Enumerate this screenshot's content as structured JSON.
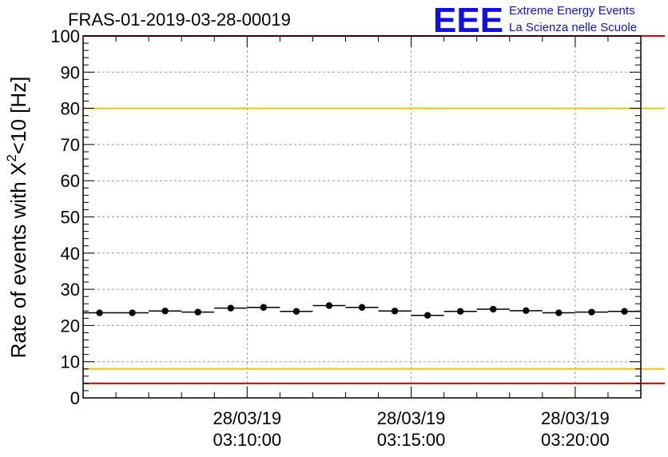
{
  "header": {
    "title": "FRAS-01-2019-03-28-00019",
    "logo_text": "EEE",
    "logo_line1": "Extreme Energy Events",
    "logo_line2": "La Scienza nelle Scuole"
  },
  "chart_data": {
    "type": "scatter",
    "title": "FRAS-01-2019-03-28-00019",
    "ylabel_main": "Rate of events with X",
    "ylabel_sup": "2",
    "ylabel_tail": "<10 [Hz]",
    "xlabel": "",
    "ylim": [
      0,
      100
    ],
    "yticks": [
      0,
      10,
      20,
      30,
      40,
      50,
      60,
      70,
      80,
      90,
      100
    ],
    "ytick_labels": [
      "0",
      "10",
      "20",
      "30",
      "40",
      "50",
      "60",
      "70",
      "80",
      "90",
      "100"
    ],
    "xlim_minutes": [
      0.0,
      17.0
    ],
    "xticks_minutes": [
      5.0,
      10.0,
      15.0
    ],
    "xtick_labels": [
      {
        "date": "28/03/19",
        "time": "03:10:00"
      },
      {
        "date": "28/03/19",
        "time": "03:15:00"
      },
      {
        "date": "28/03/19",
        "time": "03:20:00"
      }
    ],
    "grid": true,
    "bin_width_minutes": 1.0,
    "x_minutes": [
      0.5,
      1.5,
      2.5,
      3.5,
      4.5,
      5.5,
      6.5,
      7.5,
      8.5,
      9.5,
      10.5,
      11.5,
      12.5,
      13.5,
      14.5,
      15.5,
      16.5
    ],
    "values": [
      23.5,
      23.5,
      24.0,
      23.7,
      24.8,
      25.0,
      23.9,
      25.5,
      25.0,
      24.0,
      22.8,
      23.9,
      24.5,
      24.1,
      23.5,
      23.7,
      23.9
    ],
    "reference_lines": [
      {
        "y": 100,
        "color": "#e00000"
      },
      {
        "y": 80,
        "color": "#ecc600"
      },
      {
        "y": 8,
        "color": "#ecc600"
      },
      {
        "y": 4,
        "color": "#e00000"
      }
    ],
    "marker_color": "#000000"
  }
}
